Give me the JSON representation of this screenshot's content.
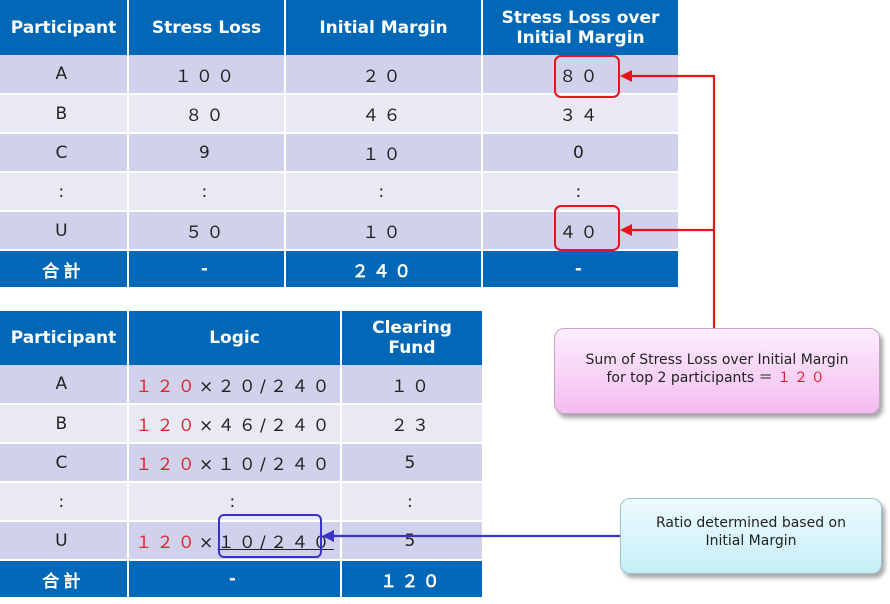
{
  "table1": {
    "headers": [
      "Participant",
      "Stress Loss",
      "Initial Margin",
      "Stress Loss over Initial Margin"
    ],
    "rows": [
      [
        "A",
        "１００",
        "２０",
        "８０"
      ],
      [
        "B",
        "８０",
        "４６",
        "３４"
      ],
      [
        "C",
        "9",
        "１０",
        "0"
      ],
      [
        ":",
        ":",
        ":",
        ":"
      ],
      [
        "U",
        "５０",
        "１０",
        "４０"
      ]
    ],
    "total": [
      "合計",
      "-",
      "２４０",
      "-"
    ]
  },
  "table2": {
    "headers": [
      "Participant",
      "Logic",
      "Clearing Fund"
    ],
    "rows": [
      {
        "p": "A",
        "logic_red": "１２０",
        "logic_rest": "×２０/２４０",
        "fund": "１０"
      },
      {
        "p": "B",
        "logic_red": "１２０",
        "logic_rest": "×４６/２４０",
        "fund": "２３"
      },
      {
        "p": "C",
        "logic_red": "１２０",
        "logic_rest": "×１０/２４０",
        "fund": "5"
      },
      {
        "p": ":",
        "logic_red": "",
        "logic_rest": ":",
        "fund": ":"
      },
      {
        "p": "U",
        "logic_red": "１２０",
        "logic_rest": "×",
        "logic_underlined": "１０/２４０",
        "fund": "5"
      }
    ],
    "total": [
      "合計",
      "-",
      "１２０"
    ]
  },
  "callouts": {
    "pink_line1": "Sum of Stress Loss over Initial Margin",
    "pink_line2": "for top 2 participants ＝",
    "pink_value": "１２０",
    "blue_line1": "Ratio determined based on",
    "blue_line2": "Initial Margin"
  },
  "colors": {
    "header_blue": "#0068b7",
    "row_dark": "#cfd2ea",
    "row_light": "#e8e9f4",
    "highlight_red": "#e8141c",
    "highlight_blue": "#3833c6"
  }
}
